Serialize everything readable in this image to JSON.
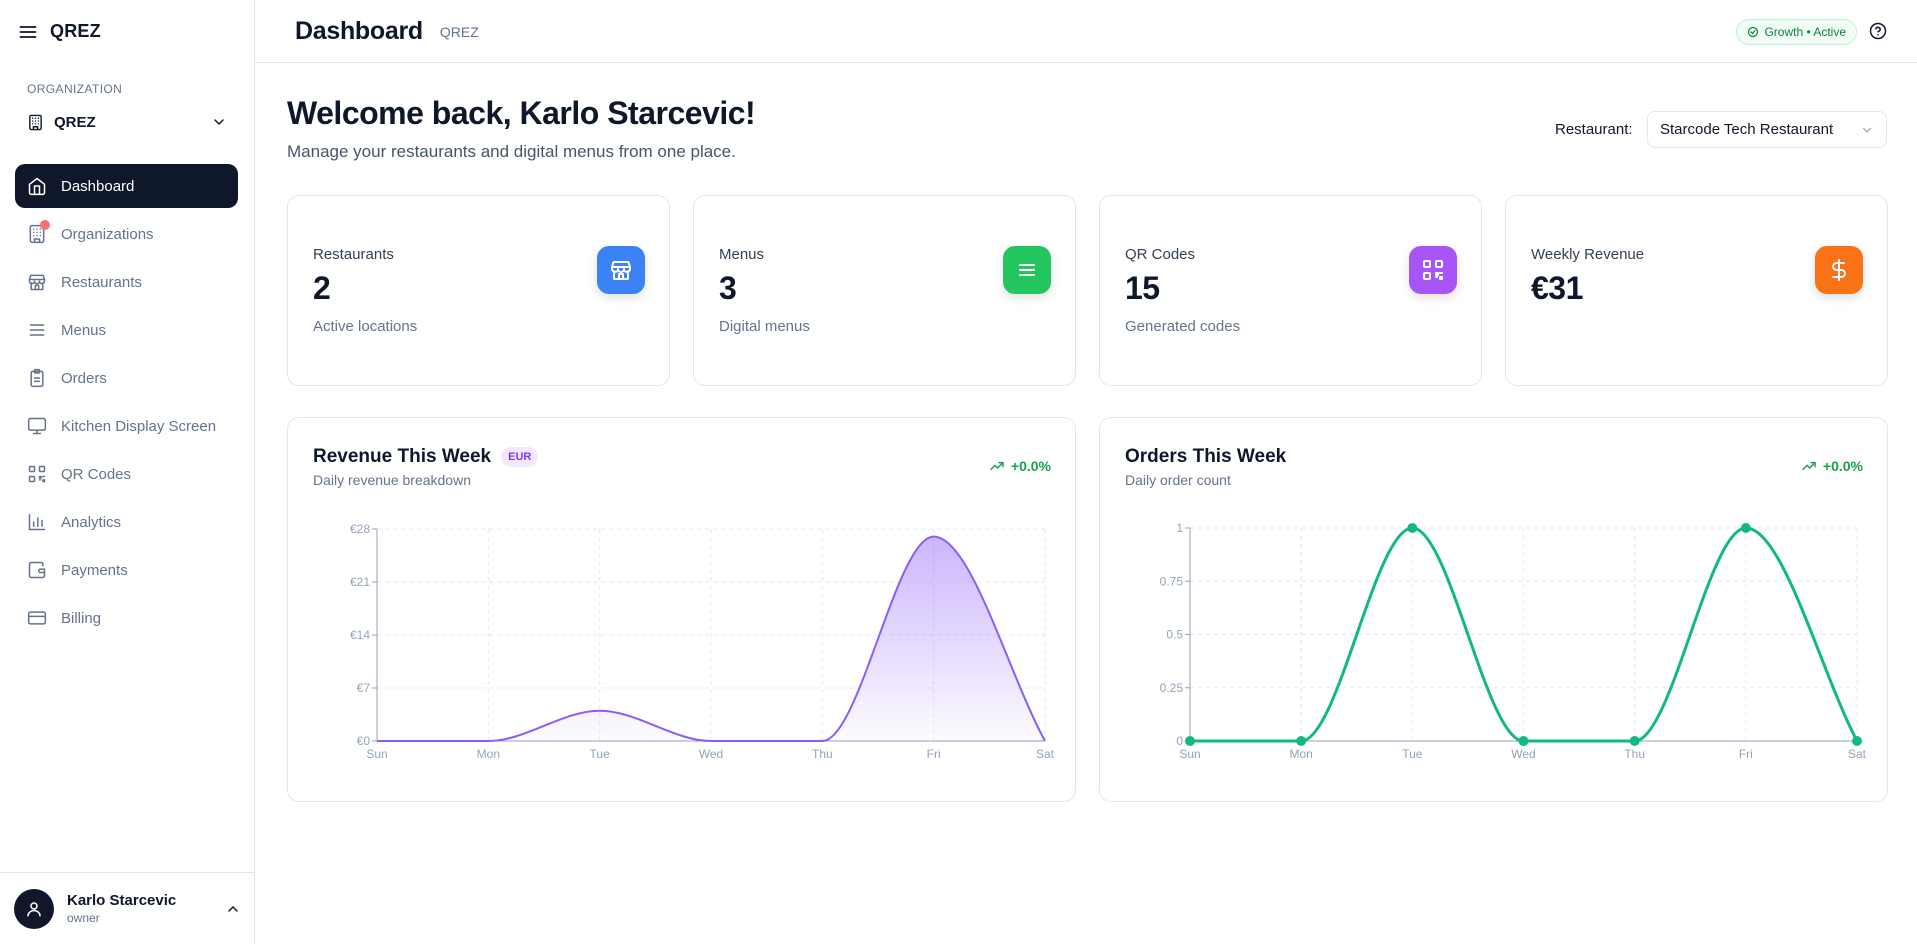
{
  "app": {
    "brand": "QREZ"
  },
  "header": {
    "title": "Dashboard",
    "subtitle": "QREZ",
    "plan_badge": "Growth • Active"
  },
  "sidebar": {
    "org_label": "ORGANIZATION",
    "org_name": "QREZ",
    "items": [
      {
        "label": "Dashboard",
        "icon": "home-icon",
        "active": true
      },
      {
        "label": "Organizations",
        "icon": "building-icon",
        "active": false
      },
      {
        "label": "Restaurants",
        "icon": "store-icon",
        "active": false
      },
      {
        "label": "Menus",
        "icon": "menu-lines-icon",
        "active": false
      },
      {
        "label": "Orders",
        "icon": "clipboard-icon",
        "active": false
      },
      {
        "label": "Kitchen Display Screen",
        "icon": "monitor-icon",
        "active": false
      },
      {
        "label": "QR Codes",
        "icon": "qr-code-icon",
        "active": false
      },
      {
        "label": "Analytics",
        "icon": "bar-chart-icon",
        "active": false
      },
      {
        "label": "Payments",
        "icon": "wallet-icon",
        "active": false
      },
      {
        "label": "Billing",
        "icon": "credit-card-icon",
        "active": false
      }
    ],
    "user": {
      "name": "Karlo Starcevic",
      "role": "owner"
    }
  },
  "main": {
    "welcome": "Welcome back, Karlo Starcevic!",
    "welcome_sub": "Manage your restaurants and digital menus from one place.",
    "restaurant_label": "Restaurant:",
    "restaurant_selected": "Starcode Tech Restaurant",
    "stats": [
      {
        "label": "Restaurants",
        "value": "2",
        "desc": "Active locations",
        "color": "#3b82f6",
        "icon": "store-icon"
      },
      {
        "label": "Menus",
        "value": "3",
        "desc": "Digital menus",
        "color": "#22c55e",
        "icon": "menu-lines-icon"
      },
      {
        "label": "QR Codes",
        "value": "15",
        "desc": "Generated codes",
        "color": "#a855f7",
        "icon": "qr-code-icon"
      },
      {
        "label": "Weekly Revenue",
        "value": "€31",
        "desc": "",
        "color": "#f97316",
        "icon": "dollar-icon"
      }
    ]
  },
  "chart_data": [
    {
      "type": "area",
      "title": "Revenue This Week",
      "currency_badge": "EUR",
      "subtitle": "Daily revenue breakdown",
      "trend": "+0.0%",
      "categories": [
        "Sun",
        "Mon",
        "Tue",
        "Wed",
        "Thu",
        "Fri",
        "Sat"
      ],
      "values": [
        0,
        0,
        4,
        0,
        0,
        27,
        0
      ],
      "y_ticks": [
        "€0",
        "€7",
        "€14",
        "€21",
        "€28"
      ],
      "ylim": [
        0,
        28
      ],
      "color": "#8b5cf6"
    },
    {
      "type": "line",
      "title": "Orders This Week",
      "subtitle": "Daily order count",
      "trend": "+0.0%",
      "categories": [
        "Sun",
        "Mon",
        "Tue",
        "Wed",
        "Thu",
        "Fri",
        "Sat"
      ],
      "values": [
        0,
        0,
        1,
        0,
        0,
        1,
        0
      ],
      "y_ticks": [
        "0",
        "0.25",
        "0.5",
        "0.75",
        "1"
      ],
      "ylim": [
        0,
        1
      ],
      "color": "#10b981"
    }
  ]
}
